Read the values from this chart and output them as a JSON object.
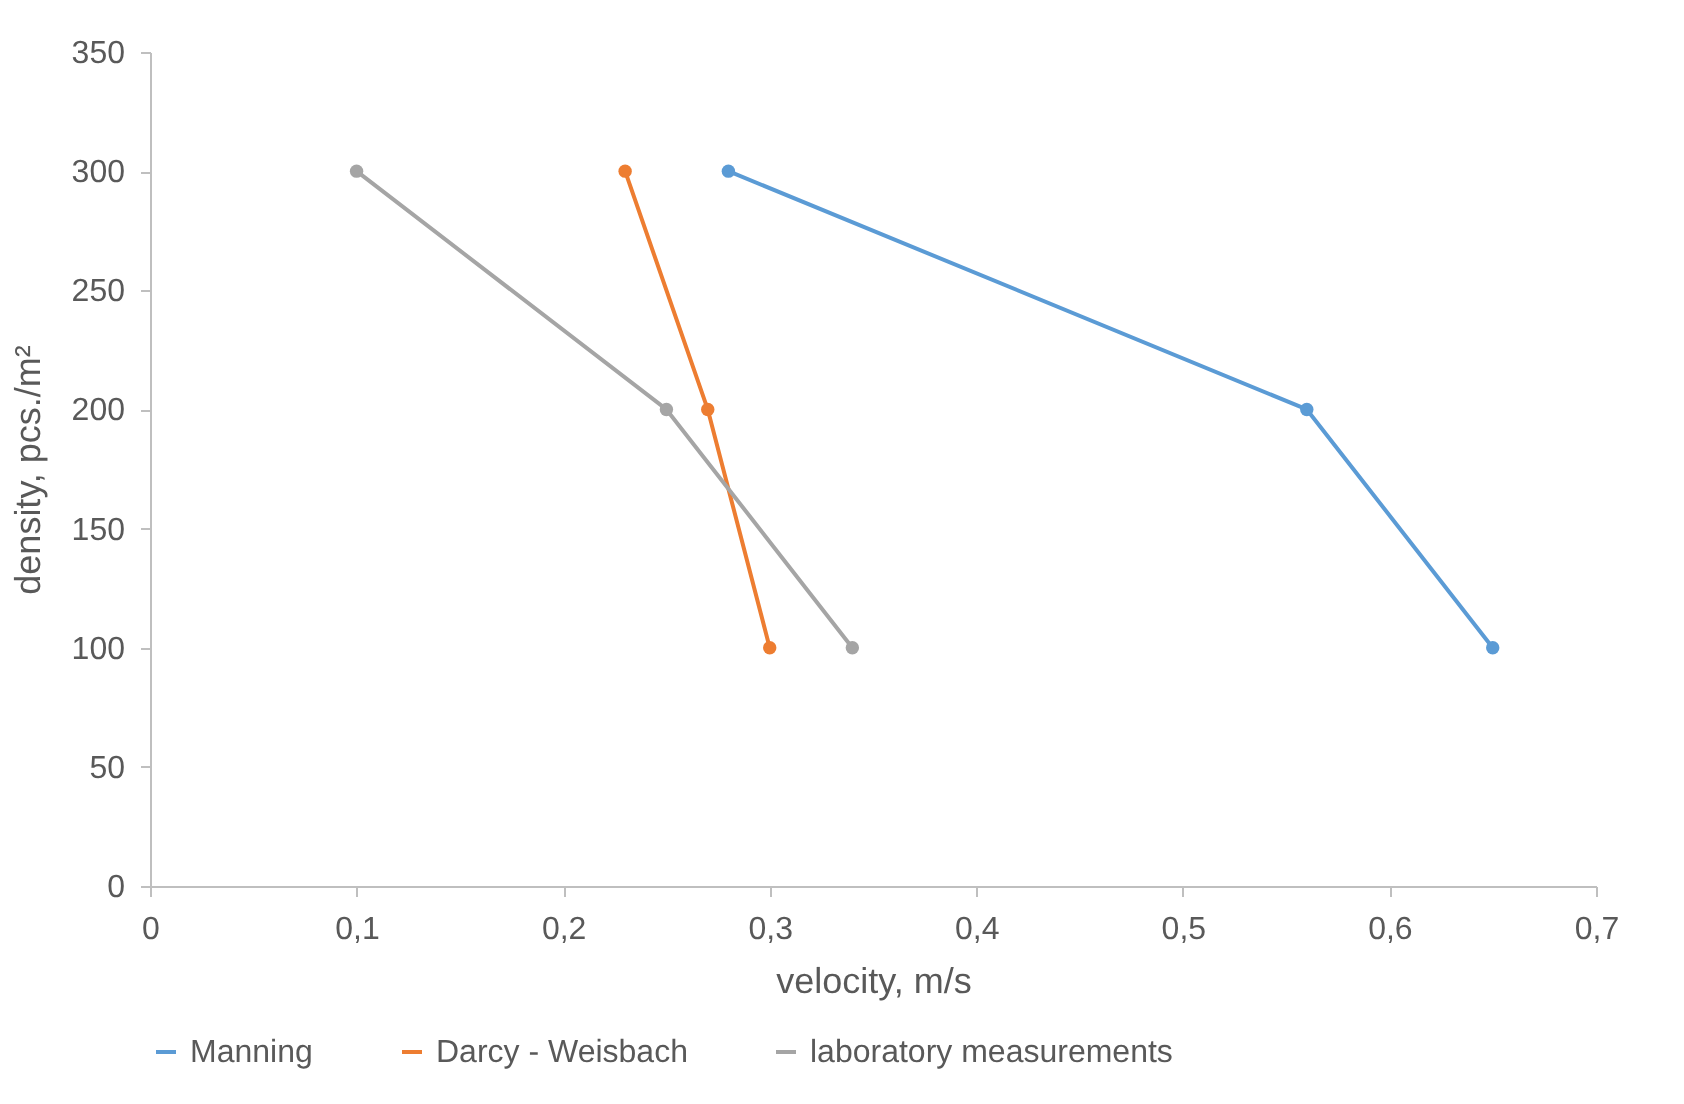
{
  "chart_data": {
    "type": "line",
    "xlabel": "velocity, m/s",
    "ylabel": "density, pcs./m²",
    "series": [
      {
        "name": "Manning",
        "color": "#5b9bd5",
        "x": [
          0.28,
          0.56,
          0.65
        ],
        "values": [
          300,
          200,
          100
        ]
      },
      {
        "name": "Darcy - Weisbach",
        "color": "#ed7d31",
        "x": [
          0.23,
          0.27,
          0.3
        ],
        "values": [
          300,
          200,
          100
        ]
      },
      {
        "name": "laboratory measurements",
        "color": "#a5a5a5",
        "x": [
          0.1,
          0.25,
          0.34
        ],
        "values": [
          300,
          200,
          100
        ]
      }
    ],
    "xlim": [
      0,
      0.7
    ],
    "xticks": [
      0,
      {
        "value": 0.1,
        "label": "0,1"
      },
      {
        "value": 0.2,
        "label": "0,2"
      },
      {
        "value": 0.3,
        "label": "0,3"
      },
      {
        "value": 0.4,
        "label": "0,4"
      },
      {
        "value": 0.5,
        "label": "0,5"
      },
      {
        "value": 0.6,
        "label": "0,6"
      },
      {
        "value": 0.7,
        "label": "0,7"
      }
    ],
    "ylim": [
      0,
      350
    ],
    "yticks": [
      0,
      50,
      100,
      150,
      200,
      250,
      300,
      350
    ],
    "grid": false,
    "legend": "bottom",
    "marker": "circle",
    "line_style": "solid"
  }
}
